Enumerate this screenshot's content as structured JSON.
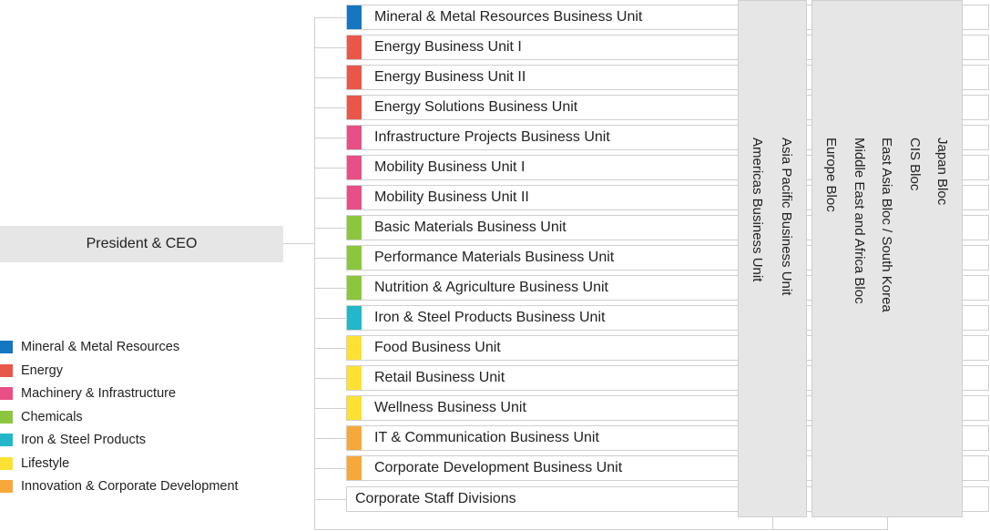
{
  "ceo": {
    "label": "President & CEO"
  },
  "business_units": [
    {
      "label": "Mineral & Metal Resources Business Unit",
      "color": "#1576c2"
    },
    {
      "label": "Energy Business Unit I",
      "color": "#e8574a"
    },
    {
      "label": "Energy Business Unit II",
      "color": "#e8574a"
    },
    {
      "label": "Energy Solutions Business Unit",
      "color": "#e8574a"
    },
    {
      "label": "Infrastructure Projects Business Unit",
      "color": "#e84f86"
    },
    {
      "label": "Mobility Business Unit I",
      "color": "#e84f86"
    },
    {
      "label": "Mobility Business Unit II",
      "color": "#e84f86"
    },
    {
      "label": "Basic Materials Business Unit",
      "color": "#8cc63f"
    },
    {
      "label": "Performance Materials Business Unit",
      "color": "#8cc63f"
    },
    {
      "label": "Nutrition & Agriculture Business Unit",
      "color": "#8cc63f"
    },
    {
      "label": "Iron & Steel Products Business Unit",
      "color": "#22b7c9"
    },
    {
      "label": "Food Business Unit",
      "color": "#fde133"
    },
    {
      "label": "Retail Business Unit",
      "color": "#fde133"
    },
    {
      "label": "Wellness Business Unit",
      "color": "#fde133"
    },
    {
      "label": "IT & Communication Business Unit",
      "color": "#f6a83b"
    },
    {
      "label": "Corporate Development Business Unit",
      "color": "#f6a83b"
    }
  ],
  "staff": {
    "label": "Corporate Staff Divisions"
  },
  "regional_business_units": [
    "Asia Pacific Business Unit",
    "Americas Business Unit"
  ],
  "regional_blocs": [
    "Japan Bloc",
    "CIS Bloc",
    "East Asia Bloc / South Korea",
    "Middle East and Africa Bloc",
    "Europe Bloc"
  ],
  "legend": [
    {
      "label": "Mineral & Metal Resources",
      "color": "#1576c2"
    },
    {
      "label": "Energy",
      "color": "#e8574a"
    },
    {
      "label": "Machinery & Infrastructure",
      "color": "#e84f86"
    },
    {
      "label": "Chemicals",
      "color": "#8cc63f"
    },
    {
      "label": "Iron & Steel Products",
      "color": "#22b7c9"
    },
    {
      "label": "Lifestyle",
      "color": "#fde133"
    },
    {
      "label": "Innovation & Corporate Development",
      "color": "#f6a83b"
    }
  ]
}
